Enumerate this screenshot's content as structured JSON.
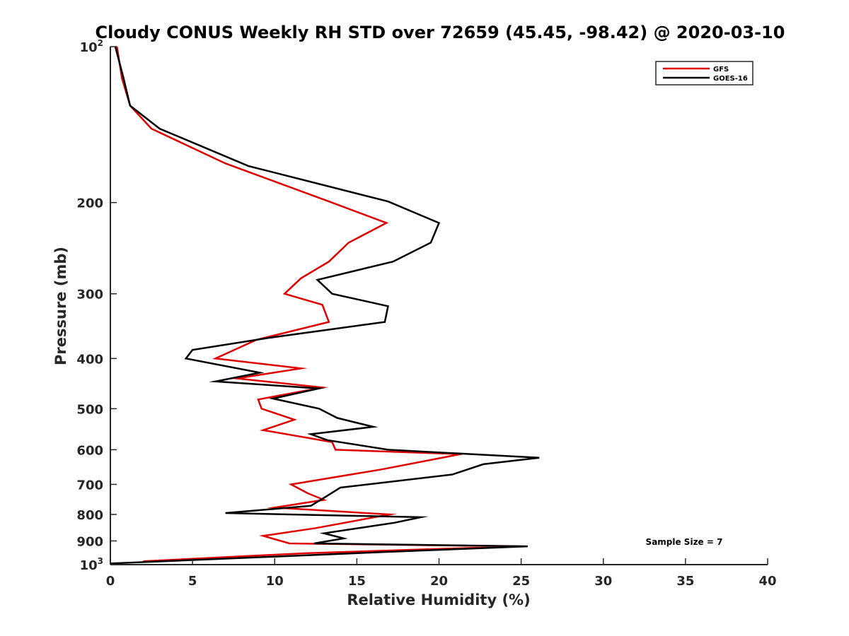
{
  "chart_data": {
    "type": "line",
    "title": "Cloudy CONUS Weekly RH STD over 72659 (45.45, -98.42) @ 2020-03-10",
    "xlabel": "Relative Humidity (%)",
    "ylabel": "Pressure (mb)",
    "xlim": [
      0,
      40
    ],
    "ylim": [
      100,
      1000
    ],
    "y_scale": "log",
    "y_reversed": true,
    "x_ticks": [
      "0",
      "5",
      "10",
      "15",
      "20",
      "25",
      "30",
      "35",
      "40"
    ],
    "y_ticks": [
      {
        "value": 100,
        "base": "10",
        "sup": "2"
      },
      {
        "value": 200,
        "label": "200"
      },
      {
        "value": 300,
        "label": "300"
      },
      {
        "value": 400,
        "label": "400"
      },
      {
        "value": 500,
        "label": "500"
      },
      {
        "value": 600,
        "label": "600"
      },
      {
        "value": 700,
        "label": "700"
      },
      {
        "value": 800,
        "label": "800"
      },
      {
        "value": 900,
        "label": "900"
      },
      {
        "value": 1000,
        "base": "10",
        "sup": "3"
      }
    ],
    "legend_position": "top-right",
    "annotation": "Sample Size = 7",
    "series": [
      {
        "name": "GFS",
        "color": "#e00000",
        "points": [
          [
            0.4,
            100
          ],
          [
            0.7,
            115
          ],
          [
            1.2,
            130
          ],
          [
            2.5,
            144
          ],
          [
            7.0,
            168
          ],
          [
            13.3,
            199
          ],
          [
            16.8,
            219
          ],
          [
            14.5,
            239
          ],
          [
            13.3,
            260
          ],
          [
            11.6,
            280
          ],
          [
            10.6,
            300
          ],
          [
            12.9,
            315
          ],
          [
            13.3,
            340
          ],
          [
            8.9,
            368
          ],
          [
            6.4,
            400
          ],
          [
            11.6,
            418
          ],
          [
            7.7,
            437
          ],
          [
            12.9,
            455
          ],
          [
            9.0,
            480
          ],
          [
            9.2,
            500
          ],
          [
            11.2,
            525
          ],
          [
            9.3,
            550
          ],
          [
            13.5,
            580
          ],
          [
            13.7,
            600
          ],
          [
            21.3,
            612
          ],
          [
            16.5,
            655
          ],
          [
            11.0,
            700
          ],
          [
            12.0,
            728
          ],
          [
            13.0,
            750
          ],
          [
            10.0,
            776
          ],
          [
            17.0,
            800
          ],
          [
            12.5,
            850
          ],
          [
            9.3,
            880
          ],
          [
            10.9,
            910
          ],
          [
            25.0,
            922
          ],
          [
            12.0,
            950
          ],
          [
            2.0,
            985
          ]
        ]
      },
      {
        "name": "GOES-16",
        "color": "#000000",
        "points": [
          [
            0.3,
            100
          ],
          [
            0.8,
            115
          ],
          [
            1.2,
            130
          ],
          [
            3.0,
            144
          ],
          [
            8.4,
            170
          ],
          [
            16.9,
            199
          ],
          [
            20.0,
            219
          ],
          [
            19.5,
            239
          ],
          [
            17.2,
            260
          ],
          [
            12.6,
            282
          ],
          [
            13.5,
            300
          ],
          [
            16.9,
            317
          ],
          [
            16.7,
            340
          ],
          [
            9.6,
            365
          ],
          [
            5.0,
            385
          ],
          [
            4.6,
            400
          ],
          [
            9.1,
            426
          ],
          [
            6.4,
            443
          ],
          [
            12.7,
            457
          ],
          [
            9.9,
            478
          ],
          [
            12.7,
            500
          ],
          [
            13.8,
            521
          ],
          [
            16.0,
            542
          ],
          [
            12.2,
            560
          ],
          [
            13.2,
            575
          ],
          [
            16.9,
            600
          ],
          [
            26.1,
            622
          ],
          [
            22.7,
            640
          ],
          [
            20.8,
            670
          ],
          [
            14.0,
            710
          ],
          [
            13.1,
            740
          ],
          [
            12.2,
            770
          ],
          [
            7.0,
            795
          ],
          [
            18.9,
            810
          ],
          [
            17.3,
            830
          ],
          [
            13.0,
            870
          ],
          [
            14.2,
            890
          ],
          [
            12.4,
            910
          ],
          [
            25.4,
            922
          ],
          [
            16.8,
            945
          ],
          [
            0.0,
            995
          ]
        ]
      }
    ]
  }
}
